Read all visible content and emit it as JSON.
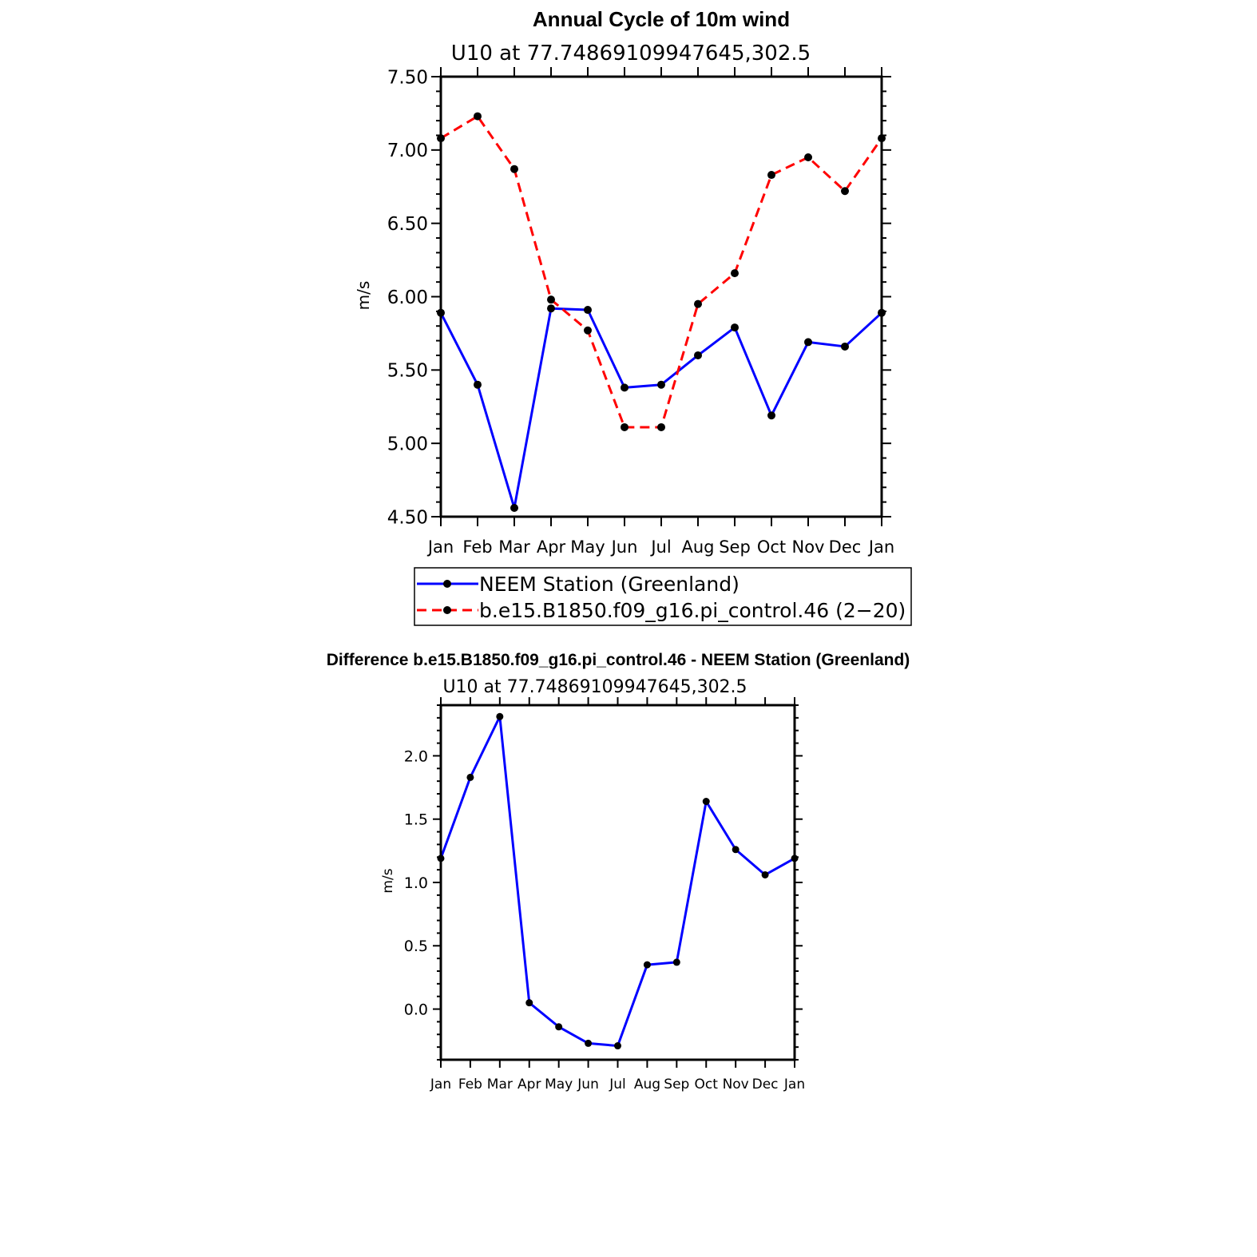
{
  "chart_data": [
    {
      "type": "line",
      "title": "Annual Cycle of 10m wind",
      "subtitle": "U10 at 77.74869109947645,302.5",
      "ylabel": "m/s",
      "xlabel": "",
      "categories": [
        "Jan",
        "Feb",
        "Mar",
        "Apr",
        "May",
        "Jun",
        "Jul",
        "Aug",
        "Sep",
        "Oct",
        "Nov",
        "Dec",
        "Jan"
      ],
      "ylim": [
        4.5,
        7.5
      ],
      "yticks": [
        "4.50",
        "5.00",
        "5.50",
        "6.00",
        "6.50",
        "7.00",
        "7.50"
      ],
      "series": [
        {
          "name": "NEEM Station (Greenland)",
          "color": "#0000ff",
          "dash": "solid",
          "values": [
            5.89,
            5.4,
            4.56,
            5.92,
            5.91,
            5.38,
            5.4,
            5.6,
            5.79,
            5.19,
            5.69,
            5.66,
            5.89
          ]
        },
        {
          "name": "b.e15.B1850.f09_g16.pi_control.46 (2−20)",
          "color": "#ff0000",
          "dash": "dashed",
          "values": [
            7.08,
            7.23,
            6.87,
            5.98,
            5.77,
            5.11,
            5.11,
            5.95,
            6.16,
            6.83,
            6.95,
            6.72,
            7.08
          ]
        }
      ],
      "legend_position": "below"
    },
    {
      "type": "line",
      "title": "Difference b.e15.B1850.f09_g16.pi_control.46 - NEEM Station (Greenland)",
      "subtitle": "U10 at 77.74869109947645,302.5",
      "ylabel": "m/s",
      "xlabel": "",
      "categories": [
        "Jan",
        "Feb",
        "Mar",
        "Apr",
        "May",
        "Jun",
        "Jul",
        "Aug",
        "Sep",
        "Oct",
        "Nov",
        "Dec",
        "Jan"
      ],
      "ylim": [
        -0.4,
        2.4
      ],
      "yticks": [
        "0.0",
        "0.5",
        "1.0",
        "1.5",
        "2.0"
      ],
      "series": [
        {
          "name": "Difference",
          "color": "#0000ff",
          "dash": "solid",
          "values": [
            1.19,
            1.83,
            2.31,
            0.05,
            -0.14,
            -0.27,
            -0.29,
            0.35,
            0.37,
            1.64,
            1.26,
            1.06,
            1.19
          ]
        }
      ]
    }
  ]
}
